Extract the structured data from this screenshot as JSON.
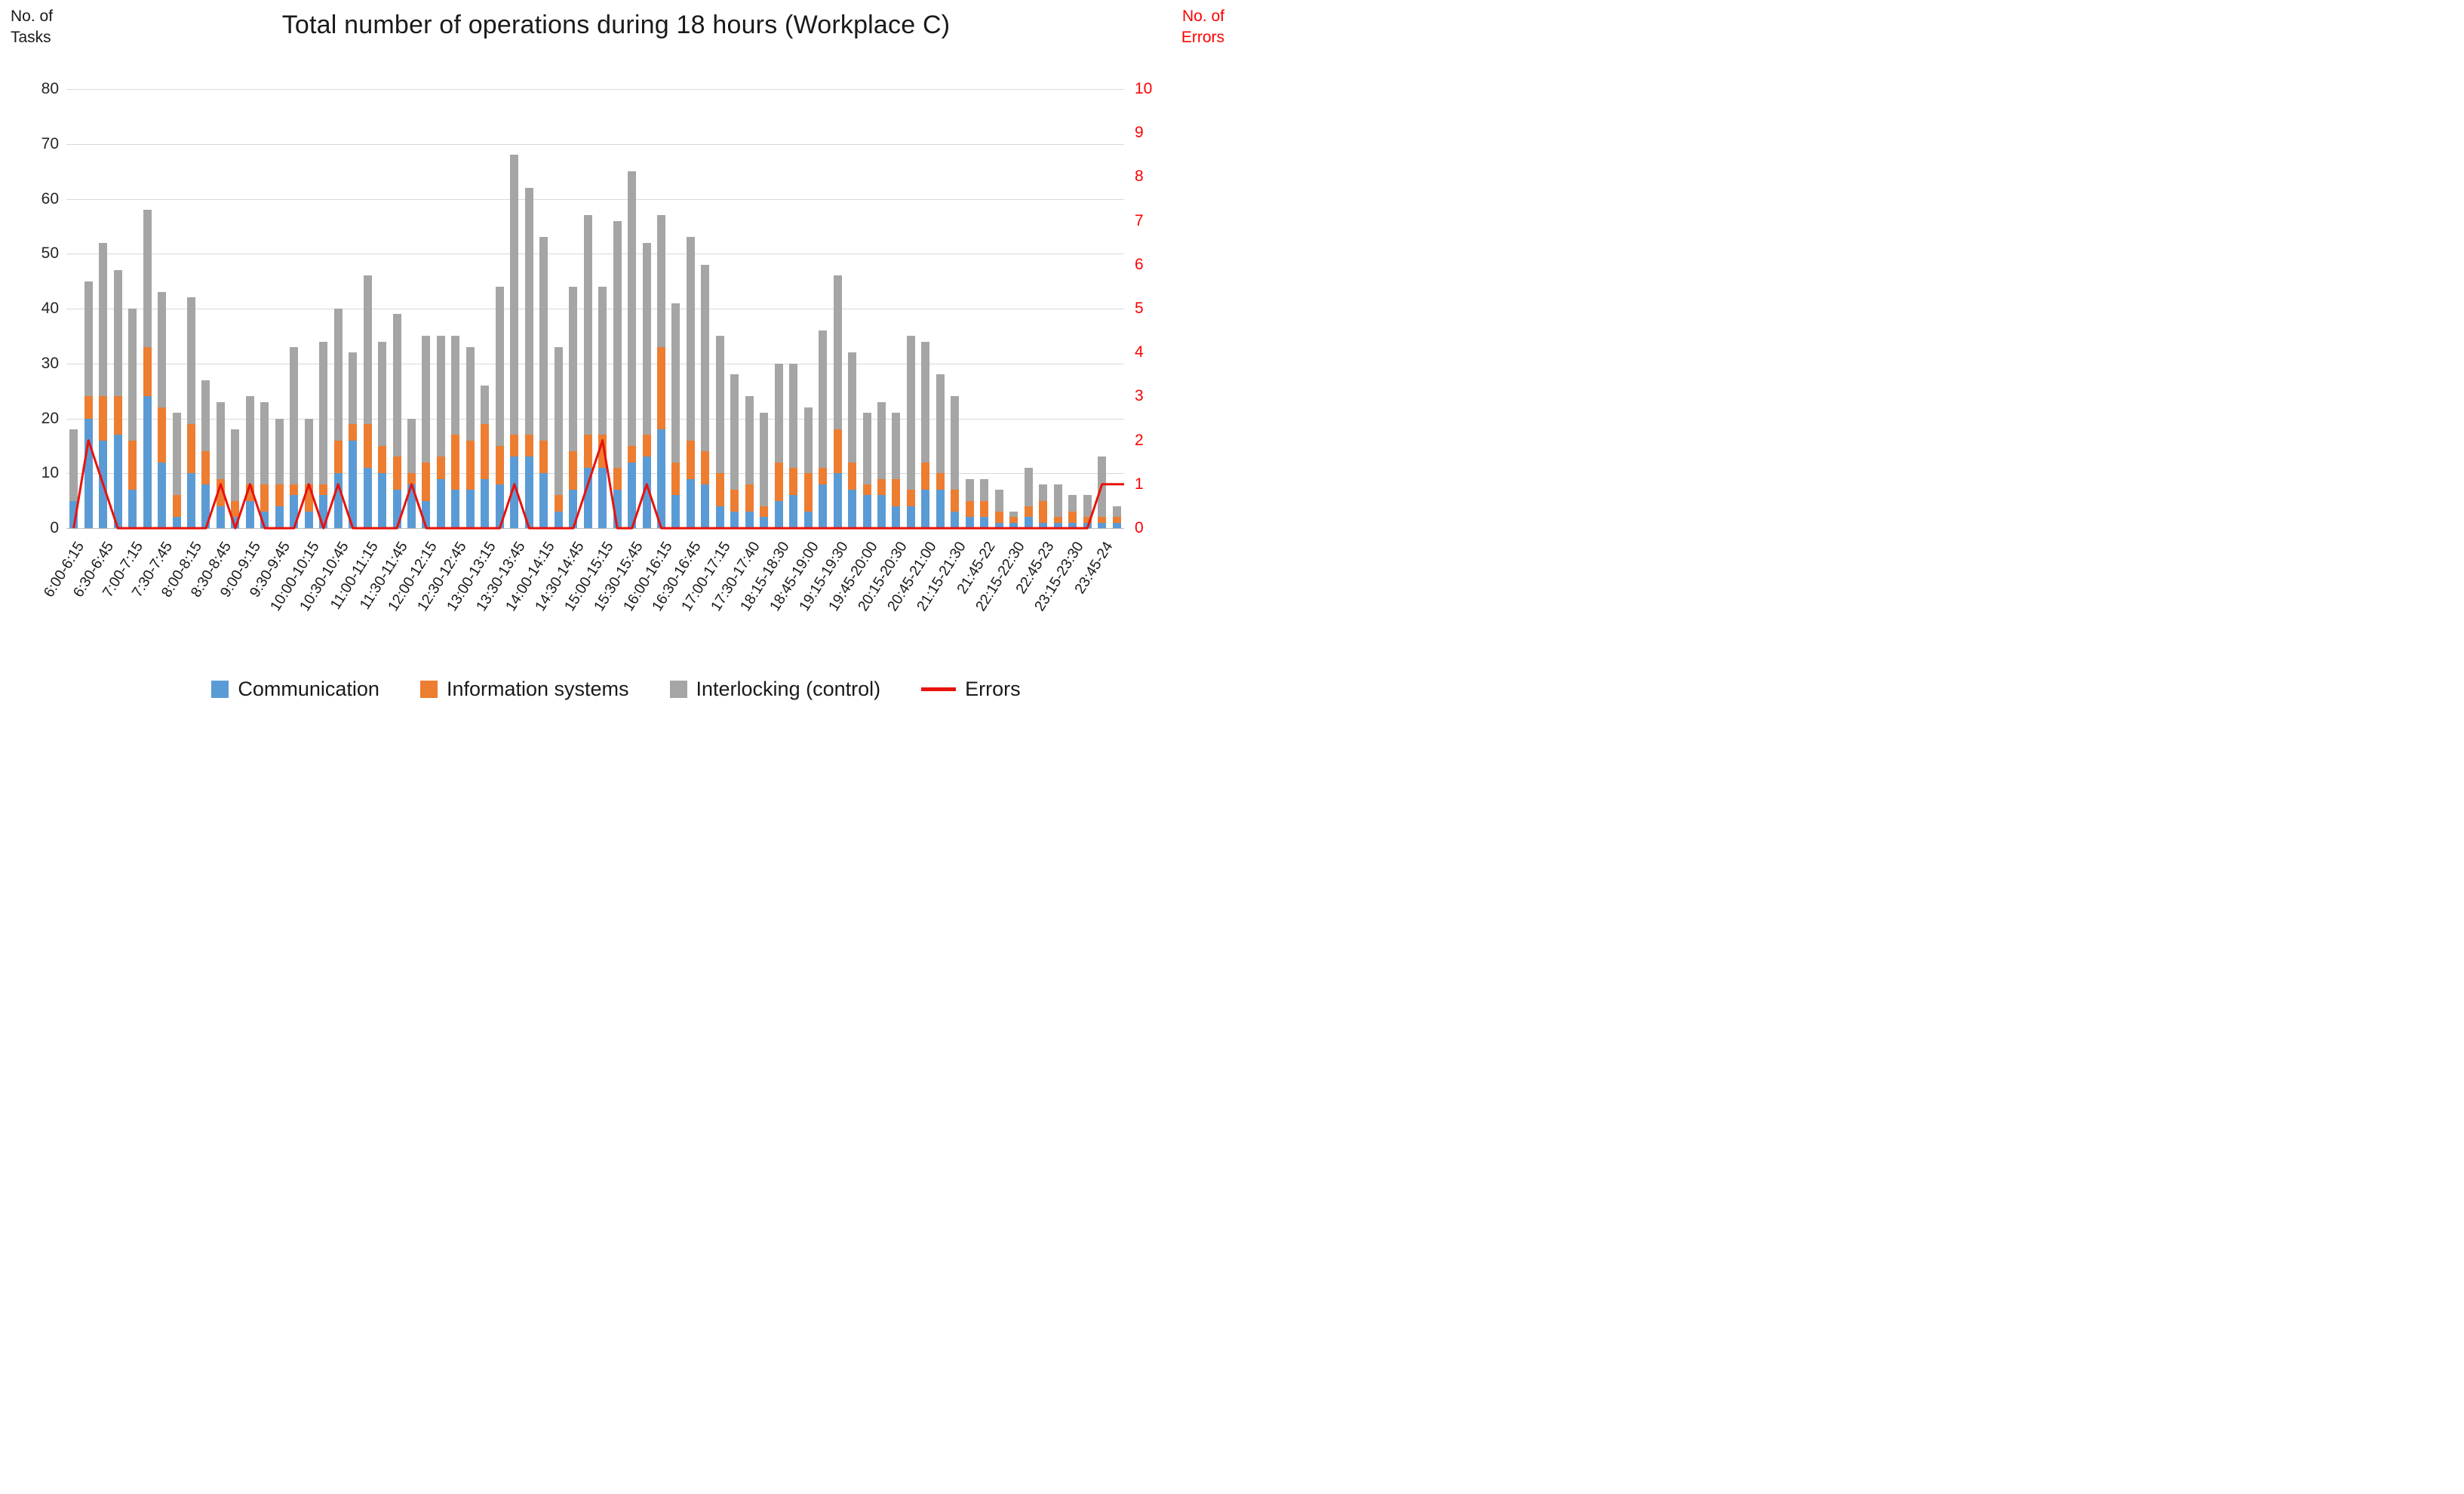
{
  "title": "Total number of operations during 18 hours (Workplace C)",
  "left_axis": {
    "label": "No. of\nTasks",
    "tick_labels": [
      "80",
      "70",
      "60",
      "50",
      "40",
      "30",
      "20",
      "10",
      "0"
    ],
    "max": 80,
    "step": 10
  },
  "right_axis": {
    "label": "No. of\nErrors",
    "tick_labels": [
      "10",
      "9",
      "8",
      "7",
      "6",
      "5",
      "4",
      "3",
      "2",
      "1",
      "0"
    ],
    "max": 10,
    "step": 1
  },
  "legend": {
    "communication": "Communication",
    "information_systems": "Information systems",
    "interlocking": "Interlocking (control)",
    "errors": "Errors"
  },
  "colors": {
    "communication": "#5b9bd5",
    "information_systems": "#ed7d31",
    "interlocking": "#a5a5a5",
    "errors_line": "#e8120b",
    "right_axis_text": "#ff0000",
    "gridline": "#d9d9d9"
  },
  "chart_data": {
    "type": "bar",
    "subtype": "stacked-bars-with-line-overlay",
    "title": "Total number of operations during 18 hours (Workplace C)",
    "xlabel": "",
    "ylabel_left": "No. of Tasks",
    "ylabel_right": "No. of Errors",
    "ylim_left": [
      0,
      80
    ],
    "ylim_right": [
      0,
      10
    ],
    "grid": true,
    "legend_position": "bottom",
    "x_labels_every_other_bar": true,
    "x_labels": [
      "6:00-6:15",
      "6:30-6:45",
      "7:00-7:15",
      "7:30-7:45",
      "8:00-8:15",
      "8:30-8:45",
      "9:00-9:15",
      "9:30-9:45",
      "10:00-10:15",
      "10:30-10:45",
      "11:00-11:15",
      "11:30-11:45",
      "12:00-12:15",
      "12:30-12:45",
      "13:00-13:15",
      "13:30-13:45",
      "14:00-14:15",
      "14:30-14:45",
      "15:00-15:15",
      "15:30-15:45",
      "16:00-16:15",
      "16:30-16:45",
      "17:00-17:15",
      "17:30-17:40",
      "18:15-18:30",
      "18:45-19:00",
      "19:15-19:30",
      "19:45-20:00",
      "20:15-20:30",
      "20:45-21:00",
      "21:15-21:30",
      "21:45-22",
      "22:15-22:30",
      "22:45-23",
      "23:15-23:30",
      "23:45-24"
    ],
    "series": [
      {
        "name": "Communication",
        "color_key": "communication",
        "values": [
          5,
          20,
          16,
          17,
          7,
          24,
          12,
          2,
          10,
          8,
          4,
          2,
          5,
          3,
          4,
          6,
          3,
          6,
          10,
          16,
          11,
          10,
          7,
          8,
          5,
          9,
          7,
          7,
          9,
          8,
          13,
          13,
          10,
          3,
          7,
          11,
          11,
          7,
          12,
          13,
          18,
          6,
          9,
          8,
          4,
          3,
          3,
          2,
          5,
          6,
          3,
          8,
          10,
          7,
          6,
          6,
          4,
          4,
          7,
          7,
          3,
          2,
          2,
          1,
          1,
          2,
          1,
          1,
          1,
          1,
          1,
          1
        ]
      },
      {
        "name": "Information systems",
        "color_key": "information_systems",
        "values": [
          0,
          4,
          8,
          7,
          9,
          9,
          10,
          4,
          9,
          6,
          5,
          3,
          3,
          5,
          4,
          2,
          5,
          2,
          6,
          3,
          8,
          5,
          6,
          2,
          7,
          4,
          10,
          9,
          10,
          7,
          4,
          4,
          6,
          3,
          7,
          6,
          6,
          4,
          3,
          4,
          15,
          6,
          7,
          6,
          6,
          4,
          5,
          2,
          7,
          5,
          7,
          3,
          8,
          5,
          2,
          3,
          5,
          3,
          5,
          3,
          4,
          3,
          3,
          2,
          1,
          2,
          4,
          1,
          2,
          1,
          1,
          1
        ]
      },
      {
        "name": "Interlocking (control)",
        "color_key": "interlocking",
        "values": [
          13,
          21,
          28,
          23,
          24,
          25,
          21,
          15,
          23,
          13,
          14,
          13,
          16,
          15,
          12,
          25,
          12,
          26,
          24,
          13,
          27,
          19,
          26,
          10,
          23,
          22,
          18,
          17,
          7,
          29,
          51,
          45,
          37,
          27,
          30,
          40,
          27,
          45,
          50,
          35,
          24,
          29,
          37,
          34,
          25,
          21,
          16,
          17,
          18,
          19,
          12,
          25,
          28,
          20,
          13,
          14,
          12,
          28,
          22,
          18,
          17,
          4,
          4,
          4,
          1,
          7,
          3,
          6,
          3,
          4,
          11,
          2
        ]
      }
    ],
    "line_series": {
      "name": "Errors",
      "axis": "right",
      "color_key": "errors_line",
      "values": [
        0,
        2,
        1,
        0,
        0,
        0,
        0,
        0,
        0,
        0,
        1,
        0,
        1,
        0,
        0,
        0,
        1,
        0,
        1,
        0,
        0,
        0,
        0,
        1,
        0,
        0,
        0,
        0,
        0,
        0,
        1,
        0,
        0,
        0,
        0,
        1,
        2,
        0,
        0,
        1,
        0,
        0,
        0,
        0,
        0,
        0,
        0,
        0,
        0,
        0,
        0,
        0,
        0,
        0,
        0,
        0,
        0,
        0,
        0,
        0,
        0,
        0,
        0,
        0,
        0,
        0,
        0,
        0,
        0,
        0,
        1,
        1
      ],
      "extends_to_right_edge": true
    }
  }
}
